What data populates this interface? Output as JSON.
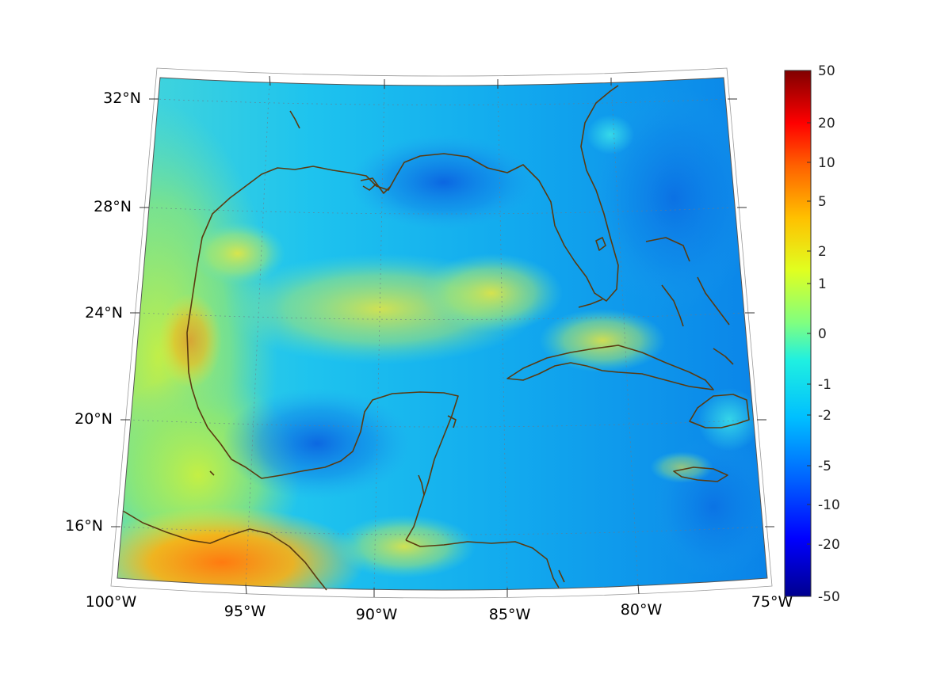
{
  "map": {
    "region": "Gulf of Mexico and Caribbean",
    "longitude_labels": [
      "100°W",
      "95°W",
      "90°W",
      "85°W",
      "80°W",
      "75°W"
    ],
    "latitude_labels": [
      "32°N",
      "28°N",
      "24°N",
      "20°N",
      "16°N"
    ],
    "coastline_color": "#5a3a10",
    "grid": "dotted"
  },
  "colorbar": {
    "colormap": "jet",
    "scale": "symmetric log-like",
    "tick_labels": [
      "50",
      "20",
      "10",
      "5",
      "2",
      "1",
      "0",
      "-1",
      "-2",
      "-5",
      "-10",
      "-20",
      "-50"
    ]
  }
}
